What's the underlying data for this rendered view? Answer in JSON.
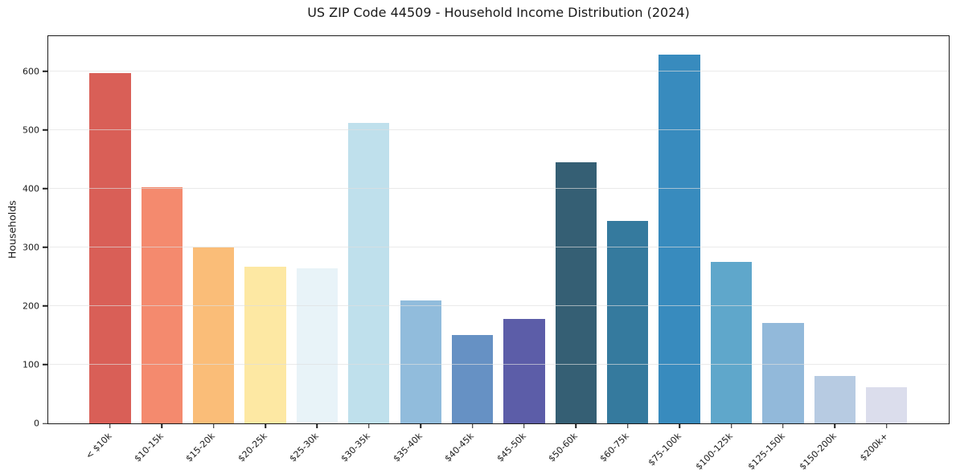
{
  "chart_data": {
    "type": "bar",
    "title": "US ZIP Code 44509 - Household Income Distribution (2024)",
    "xlabel": "",
    "ylabel": "Households",
    "categories": [
      "< $10k",
      "$10-15k",
      "$15-20k",
      "$20-25k",
      "$25-30k",
      "$30-35k",
      "$35-40k",
      "$40-45k",
      "$45-50k",
      "$50-60k",
      "$60-75k",
      "$75-100k",
      "$100-125k",
      "$125-150k",
      "$150-200k",
      "$200k+"
    ],
    "values": [
      597,
      403,
      300,
      267,
      264,
      512,
      210,
      150,
      178,
      445,
      345,
      628,
      275,
      171,
      81,
      61
    ],
    "bar_colors": [
      "#d95f57",
      "#f48a6e",
      "#fabd78",
      "#fde8a3",
      "#e8f3f8",
      "#bfe0ec",
      "#91bcdc",
      "#6691c4",
      "#5c5da8",
      "#355f74",
      "#357a9e",
      "#388bbe",
      "#5fa7cb",
      "#92b9da",
      "#b7cbe2",
      "#dbddec"
    ],
    "ylim": [
      0,
      660
    ],
    "yticks": [
      0,
      100,
      200,
      300,
      400,
      500,
      600
    ],
    "grid": "horizontal",
    "grid_color": "#e8e8e8",
    "background": "#ffffff",
    "legend": "none"
  }
}
